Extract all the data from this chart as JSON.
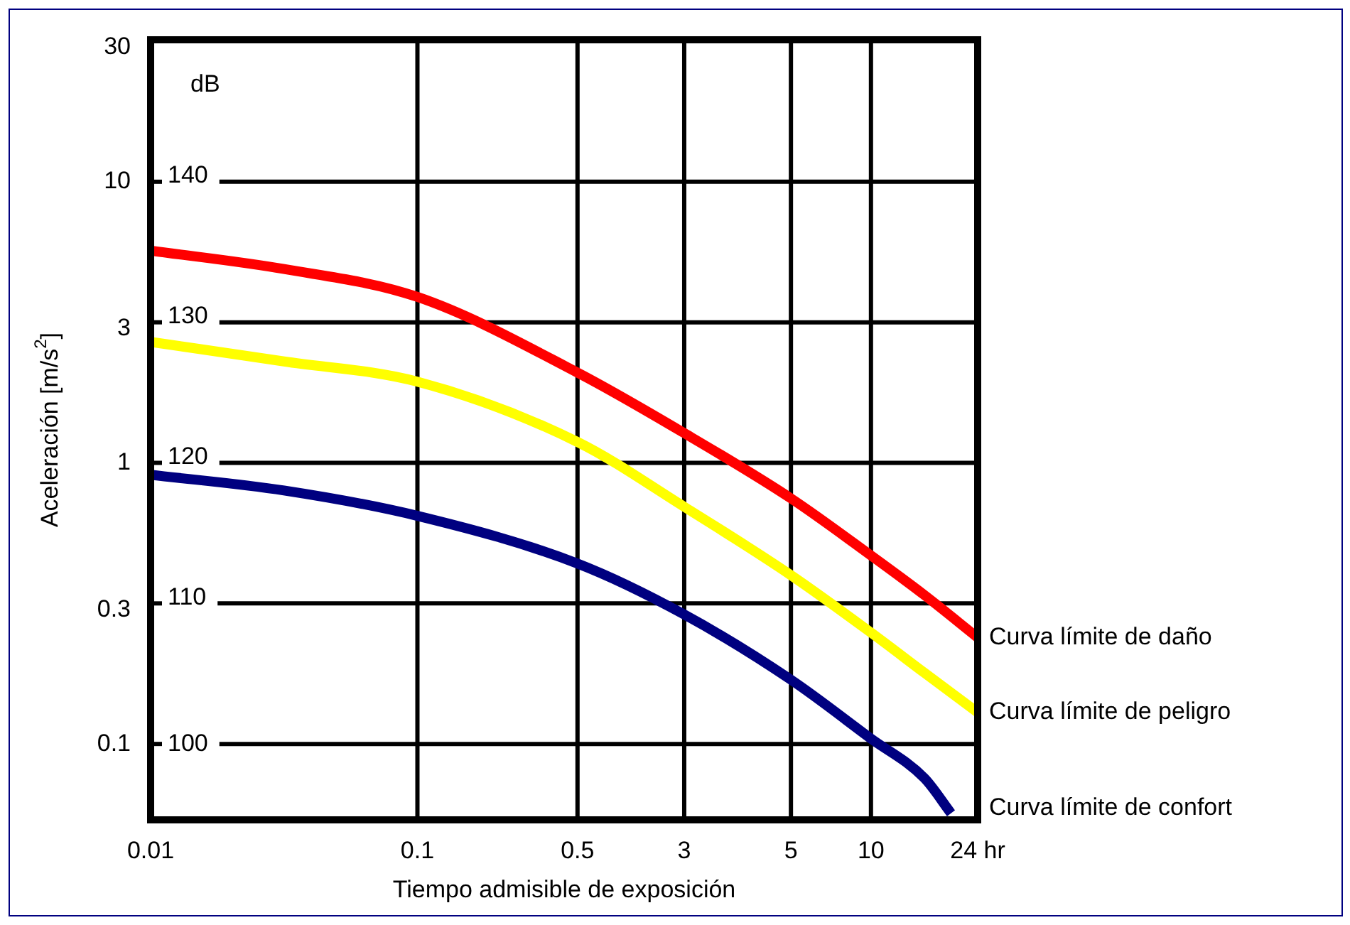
{
  "chart_data": {
    "type": "line",
    "xlabel": "Tiempo admisible de exposición",
    "ylabel": "Aceleración [m/s$^{2}$]",
    "y2label": "dB",
    "categories": [
      "0.01",
      null,
      null,
      null,
      null,
      null,
      null,
      null,
      null,
      null,
      "0.1",
      null,
      null,
      null,
      null,
      null,
      "0.5",
      null,
      null,
      null,
      "3",
      null,
      null,
      null,
      "5",
      null,
      null,
      "10",
      null,
      null,
      null,
      "24 hr"
    ],
    "series": [
      {
        "name": "Curva límite de daño",
        "color": "#ff0000",
        "values": [
          5.7,
          null,
          null,
          null,
          null,
          4.9,
          null,
          null,
          null,
          null,
          3.9,
          null,
          null,
          null,
          null,
          null,
          2.1,
          null,
          null,
          null,
          1.28,
          null,
          null,
          null,
          0.75,
          null,
          null,
          0.47,
          null,
          0.34,
          null,
          0.24
        ]
      },
      {
        "name": "Curva límite de peligro",
        "color": "#ffff00",
        "values": [
          2.7,
          null,
          null,
          null,
          null,
          2.3,
          null,
          null,
          null,
          null,
          1.95,
          null,
          null,
          null,
          null,
          null,
          1.19,
          null,
          null,
          null,
          0.7,
          null,
          null,
          null,
          0.4,
          null,
          null,
          0.25,
          null,
          0.18,
          null,
          0.13
        ]
      },
      {
        "name": "Curva límite de confort",
        "color": "#000080",
        "values": [
          0.91,
          null,
          null,
          null,
          null,
          0.8,
          null,
          null,
          null,
          null,
          0.65,
          null,
          null,
          null,
          null,
          null,
          0.44,
          null,
          null,
          null,
          0.29,
          null,
          null,
          null,
          0.17,
          null,
          null,
          0.105,
          null,
          0.076,
          0.057,
          null
        ]
      }
    ],
    "log": "y",
    "ylim": [
      0.054,
      32
    ],
    "yticks": [
      0.1,
      0.3,
      1,
      3,
      10,
      30
    ],
    "y2lim": [
      94.6,
      150.1
    ],
    "y2ticks": [
      100,
      110,
      120,
      130,
      140
    ],
    "grid": true,
    "legend": false,
    "marker": "none",
    "line_style": "solid"
  }
}
